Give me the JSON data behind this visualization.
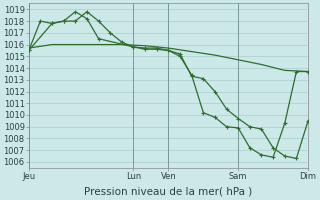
{
  "background_color": "#cce8e8",
  "grid_color": "#aacaca",
  "line_color": "#2d6e2d",
  "marker_color": "#2d6e2d",
  "ylim": [
    1005.5,
    1019.5
  ],
  "yticks": [
    1006,
    1007,
    1008,
    1009,
    1010,
    1011,
    1012,
    1013,
    1014,
    1015,
    1016,
    1017,
    1018,
    1019
  ],
  "xlabel": "Pression niveau de la mer( hPa )",
  "xlabel_fontsize": 7.5,
  "tick_fontsize": 6,
  "xtick_labels": [
    "Jeu",
    "Lun",
    "Ven",
    "Sam",
    "Dim"
  ],
  "xtick_positions": [
    0,
    9,
    12,
    18,
    24
  ],
  "xlim": [
    0,
    24
  ],
  "line1_x": [
    0,
    2,
    4,
    6,
    8,
    10,
    12,
    14,
    16,
    18,
    20,
    22,
    24
  ],
  "line1_y": [
    1015.7,
    1016.0,
    1016.0,
    1016.0,
    1016.0,
    1015.9,
    1015.7,
    1015.4,
    1015.1,
    1014.7,
    1014.3,
    1013.8,
    1013.7
  ],
  "line2_x": [
    0,
    1,
    2,
    3,
    4,
    5,
    6,
    7,
    8,
    9,
    10,
    11,
    12,
    13,
    14,
    15,
    16,
    17,
    18,
    19,
    20,
    21,
    22,
    23,
    24
  ],
  "line2_y": [
    1015.5,
    1018.0,
    1017.8,
    1018.0,
    1018.0,
    1018.8,
    1018.0,
    1017.0,
    1016.2,
    1015.8,
    1015.7,
    1015.7,
    1015.5,
    1015.2,
    1013.3,
    1013.1,
    1012.0,
    1010.5,
    1009.7,
    1009.0,
    1008.8,
    1007.2,
    1006.5,
    1006.3,
    1009.5
  ],
  "line3_x": [
    0,
    2,
    3,
    4,
    5,
    6,
    9,
    10,
    11,
    12,
    13,
    14,
    15,
    16,
    17,
    18,
    19,
    20,
    21,
    22,
    23,
    24
  ],
  "line3_y": [
    1015.5,
    1017.8,
    1018.0,
    1018.8,
    1018.2,
    1016.5,
    1015.8,
    1015.6,
    1015.6,
    1015.5,
    1015.0,
    1013.4,
    1010.2,
    1009.8,
    1009.0,
    1008.9,
    1007.2,
    1006.6,
    1006.4,
    1009.3,
    1013.7,
    1013.7
  ]
}
